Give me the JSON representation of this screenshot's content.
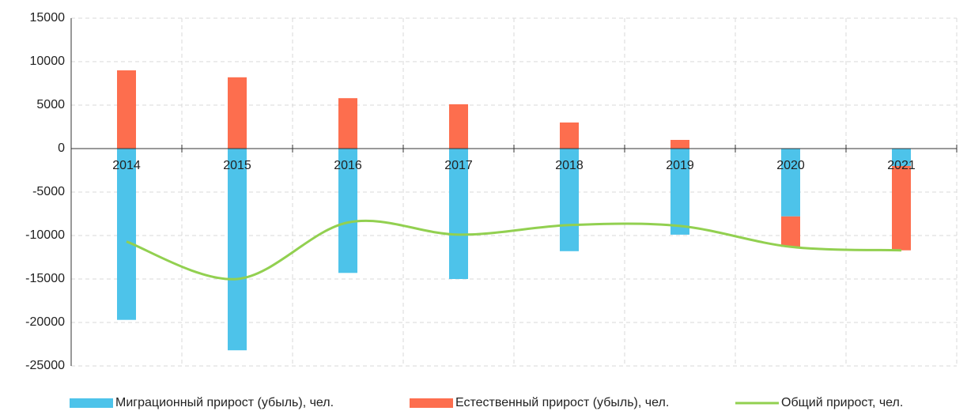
{
  "chart_data": {
    "type": "bar",
    "categories": [
      "2014",
      "2015",
      "2016",
      "2017",
      "2018",
      "2019",
      "2020",
      "2021"
    ],
    "series": [
      {
        "name": "Миграционный прирост (убыль), чел.",
        "type": "bar",
        "color": "#4dc3ea",
        "values": [
          -19700,
          -23200,
          -14300,
          -15000,
          -11800,
          -9900,
          -7800,
          -2000
        ]
      },
      {
        "name": "Естественный прирост (убыль), чел.",
        "type": "bar",
        "color": "#fd6e4e",
        "values": [
          9000,
          8200,
          5800,
          5100,
          3000,
          1000,
          -3500,
          -9700
        ]
      },
      {
        "name": "Общий прирост, чел.",
        "type": "line",
        "smooth": true,
        "color": "#92d050",
        "values": [
          -10700,
          -15000,
          -8500,
          -9900,
          -8800,
          -8900,
          -11300,
          -11700
        ]
      }
    ],
    "stacked": true,
    "ylim": [
      -25000,
      15000
    ],
    "yticks": [
      -25000,
      -20000,
      -15000,
      -10000,
      -5000,
      0,
      5000,
      10000,
      15000
    ],
    "grid": true,
    "legend": "bottom"
  }
}
